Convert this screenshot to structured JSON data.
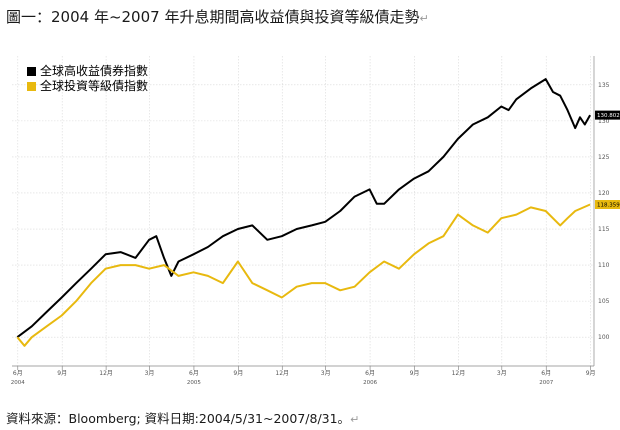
{
  "page": {
    "title": "圖一：2004 年~2007 年升息期間高收益債與投資等級債走勢",
    "source": "資料來源：Bloomberg; 資料日期:2004/5/31~2007/8/31。",
    "return_mark": "↵"
  },
  "chart_data": {
    "type": "line",
    "title": "",
    "xlabel": "",
    "ylabel": "",
    "ylim": [
      96,
      139
    ],
    "grid": true,
    "legend_placement": "top-left",
    "y_ticks": [
      100,
      105,
      110,
      115,
      120,
      125,
      130,
      135
    ],
    "x_ticks": [
      {
        "date": "2004-06",
        "label": "6月"
      },
      {
        "date": "2004-09",
        "label": "9月"
      },
      {
        "date": "2004-12",
        "label": "12月"
      },
      {
        "date": "2005-03",
        "label": "3月"
      },
      {
        "date": "2005-06",
        "label": "6月"
      },
      {
        "date": "2005-09",
        "label": "9月"
      },
      {
        "date": "2005-12",
        "label": "12月"
      },
      {
        "date": "2006-03",
        "label": "3月"
      },
      {
        "date": "2006-06",
        "label": "6月"
      },
      {
        "date": "2006-09",
        "label": "9月"
      },
      {
        "date": "2006-12",
        "label": "12月"
      },
      {
        "date": "2007-03",
        "label": "3月"
      },
      {
        "date": "2007-06",
        "label": "6月"
      },
      {
        "date": "2007-09",
        "label": "9月"
      }
    ],
    "year_labels": [
      {
        "date": "2004-06",
        "label": "2004"
      },
      {
        "date": "2005-06",
        "label": "2005"
      },
      {
        "date": "2006-06",
        "label": "2006"
      },
      {
        "date": "2007-06",
        "label": "2007"
      }
    ],
    "series": [
      {
        "name": "全球高收益債券指數",
        "color": "#000000",
        "last_value_label": "130.802",
        "points": [
          [
            "2004-05-31",
            100
          ],
          [
            "2004-06-30",
            101.5
          ],
          [
            "2004-07-31",
            103.5
          ],
          [
            "2004-08-31",
            105.5
          ],
          [
            "2004-09-30",
            107.5
          ],
          [
            "2004-10-31",
            109.5
          ],
          [
            "2004-11-30",
            111.5
          ],
          [
            "2004-12-31",
            111.8
          ],
          [
            "2005-01-31",
            111
          ],
          [
            "2005-02-28",
            113.5
          ],
          [
            "2005-03-15",
            114
          ],
          [
            "2005-03-31",
            111
          ],
          [
            "2005-04-15",
            108.5
          ],
          [
            "2005-04-30",
            110.5
          ],
          [
            "2005-05-31",
            111.5
          ],
          [
            "2005-06-30",
            112.5
          ],
          [
            "2005-07-31",
            114
          ],
          [
            "2005-08-31",
            115
          ],
          [
            "2005-09-30",
            115.5
          ],
          [
            "2005-10-31",
            113.5
          ],
          [
            "2005-11-30",
            114
          ],
          [
            "2005-12-31",
            115
          ],
          [
            "2006-01-31",
            115.5
          ],
          [
            "2006-02-28",
            116
          ],
          [
            "2006-03-31",
            117.5
          ],
          [
            "2006-04-30",
            119.5
          ],
          [
            "2006-05-31",
            120.5
          ],
          [
            "2006-06-15",
            118.5
          ],
          [
            "2006-06-30",
            118.5
          ],
          [
            "2006-07-31",
            120.5
          ],
          [
            "2006-08-31",
            122
          ],
          [
            "2006-09-30",
            123
          ],
          [
            "2006-10-31",
            125
          ],
          [
            "2006-11-30",
            127.5
          ],
          [
            "2006-12-31",
            129.5
          ],
          [
            "2007-01-31",
            130.5
          ],
          [
            "2007-02-28",
            132
          ],
          [
            "2007-03-15",
            131.5
          ],
          [
            "2007-03-31",
            133
          ],
          [
            "2007-04-30",
            134.5
          ],
          [
            "2007-05-31",
            135.8
          ],
          [
            "2007-06-15",
            134
          ],
          [
            "2007-06-30",
            133.5
          ],
          [
            "2007-07-15",
            131.5
          ],
          [
            "2007-07-31",
            129
          ],
          [
            "2007-08-10",
            130.5
          ],
          [
            "2007-08-20",
            129.5
          ],
          [
            "2007-08-31",
            130.8
          ]
        ]
      },
      {
        "name": "全球投資等級債指數",
        "color": "#E8B90F",
        "last_value_label": "118.359",
        "points": [
          [
            "2004-05-31",
            100
          ],
          [
            "2004-06-15",
            98.8
          ],
          [
            "2004-06-30",
            100
          ],
          [
            "2004-07-31",
            101.5
          ],
          [
            "2004-08-31",
            103
          ],
          [
            "2004-09-30",
            105
          ],
          [
            "2004-10-31",
            107.5
          ],
          [
            "2004-11-30",
            109.5
          ],
          [
            "2004-12-31",
            110
          ],
          [
            "2005-01-31",
            110
          ],
          [
            "2005-02-28",
            109.5
          ],
          [
            "2005-03-31",
            110
          ],
          [
            "2005-04-30",
            108.5
          ],
          [
            "2005-05-31",
            109
          ],
          [
            "2005-06-30",
            108.5
          ],
          [
            "2005-07-31",
            107.5
          ],
          [
            "2005-08-31",
            110.5
          ],
          [
            "2005-09-30",
            107.5
          ],
          [
            "2005-10-31",
            106.5
          ],
          [
            "2005-11-30",
            105.5
          ],
          [
            "2005-12-31",
            107
          ],
          [
            "2006-01-31",
            107.5
          ],
          [
            "2006-02-28",
            107.5
          ],
          [
            "2006-03-31",
            106.5
          ],
          [
            "2006-04-30",
            107
          ],
          [
            "2006-05-31",
            109
          ],
          [
            "2006-06-30",
            110.5
          ],
          [
            "2006-07-31",
            109.5
          ],
          [
            "2006-08-31",
            111.5
          ],
          [
            "2006-09-30",
            113
          ],
          [
            "2006-10-31",
            114
          ],
          [
            "2006-11-30",
            117
          ],
          [
            "2006-12-31",
            115.5
          ],
          [
            "2007-01-31",
            114.5
          ],
          [
            "2007-02-28",
            116.5
          ],
          [
            "2007-03-31",
            117
          ],
          [
            "2007-04-30",
            118
          ],
          [
            "2007-05-31",
            117.5
          ],
          [
            "2007-06-30",
            115.5
          ],
          [
            "2007-07-15",
            116.5
          ],
          [
            "2007-07-31",
            117.5
          ],
          [
            "2007-08-31",
            118.4
          ]
        ]
      }
    ]
  }
}
